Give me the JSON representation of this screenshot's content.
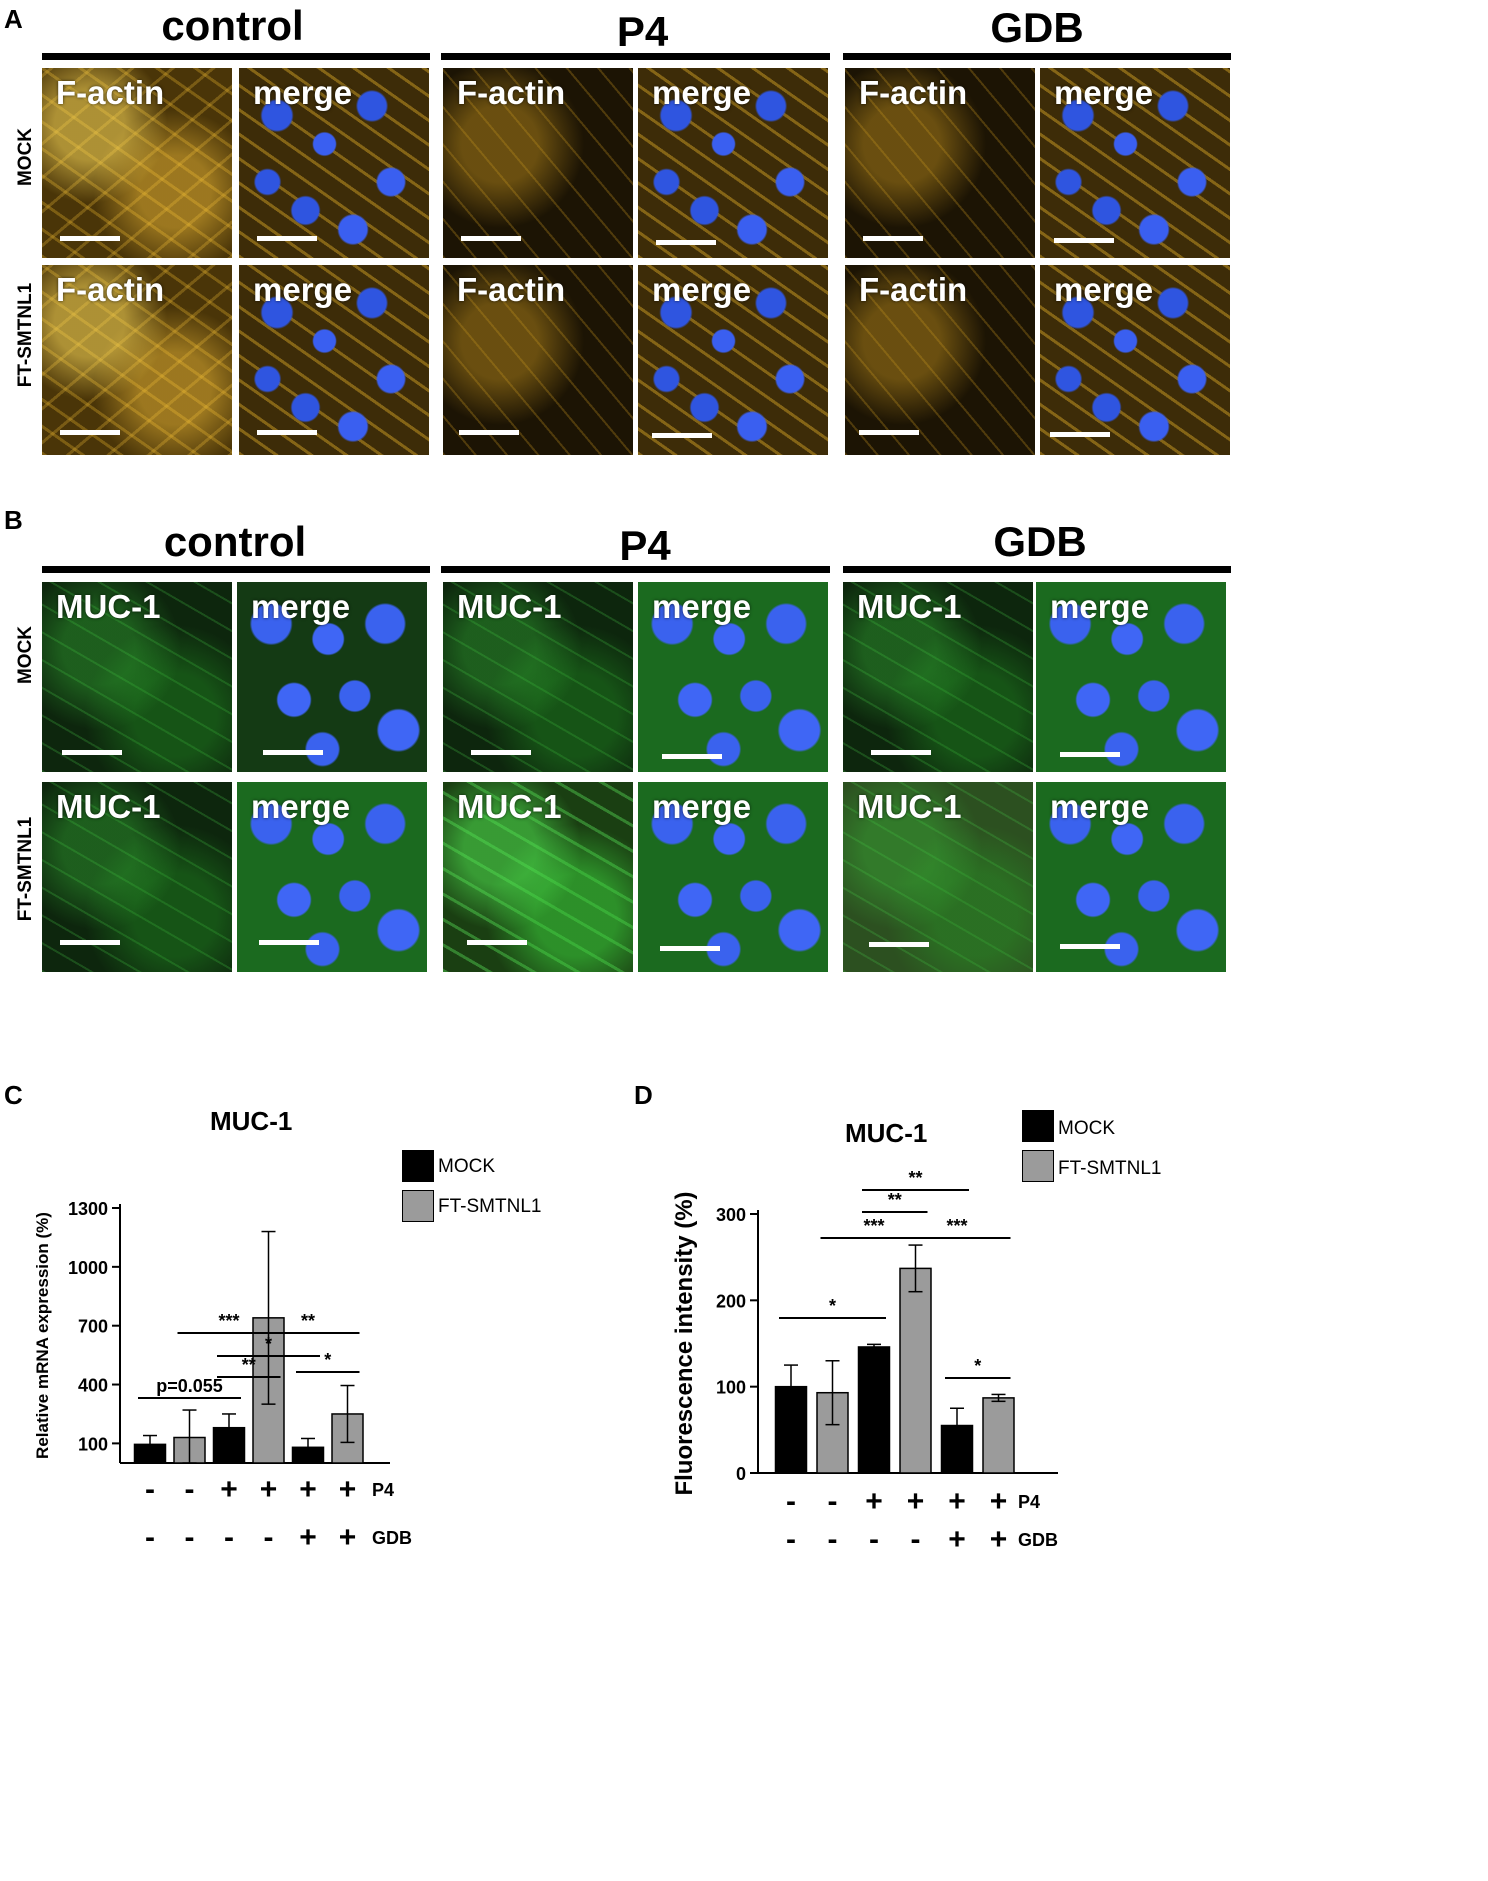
{
  "figure": {
    "panel_a": {
      "letter": "A",
      "groups": [
        {
          "title": "control",
          "tiles": [
            [
              "F-actin",
              "merge"
            ],
            [
              "F-actin",
              "merge"
            ]
          ]
        },
        {
          "title": "P4",
          "tiles": [
            [
              "F-actin",
              "merge"
            ],
            [
              "F-actin",
              "merge"
            ]
          ]
        },
        {
          "title": "GDB",
          "tiles": [
            [
              "F-actin",
              "merge"
            ],
            [
              "F-actin",
              "merge"
            ]
          ]
        }
      ],
      "row_labels": [
        "MOCK",
        "FT-SMTNL1"
      ]
    },
    "panel_b": {
      "letter": "B",
      "groups": [
        {
          "title": "control",
          "tiles": [
            [
              "MUC-1",
              "merge"
            ],
            [
              "MUC-1",
              "merge"
            ]
          ]
        },
        {
          "title": "P4",
          "tiles": [
            [
              "MUC-1",
              "merge"
            ],
            [
              "MUC-1",
              "merge"
            ]
          ]
        },
        {
          "title": "GDB",
          "tiles": [
            [
              "MUC-1",
              "merge"
            ],
            [
              "MUC-1",
              "merge"
            ]
          ]
        }
      ],
      "row_labels": [
        "MOCK",
        "FT-SMTNL1"
      ]
    }
  },
  "chart_data": [
    {
      "panel": "C",
      "type": "bar",
      "title": "MUC-1",
      "ylabel": "Relative mRNA expression (%)",
      "ylim": [
        0,
        1300
      ],
      "yticks": [
        100,
        400,
        700,
        1000,
        1300
      ],
      "series": [
        {
          "name": "MOCK",
          "color": "#000000"
        },
        {
          "name": "FT-SMTNL1",
          "color": "#9b9b9b"
        }
      ],
      "bars": [
        {
          "series": "MOCK",
          "value": 95,
          "err": 45
        },
        {
          "series": "FT-SMTNL1",
          "value": 130,
          "err": 140
        },
        {
          "series": "MOCK",
          "value": 180,
          "err": 70
        },
        {
          "series": "FT-SMTNL1",
          "value": 740,
          "err": 440
        },
        {
          "series": "MOCK",
          "value": 80,
          "err": 45
        },
        {
          "series": "FT-SMTNL1",
          "value": 250,
          "err": 145
        }
      ],
      "conditions": [
        {
          "name": "P4",
          "values": [
            "-",
            "-",
            "+",
            "+",
            "+",
            "+"
          ]
        },
        {
          "name": "GDB",
          "values": [
            "-",
            "-",
            "-",
            "-",
            "+",
            "+"
          ]
        }
      ],
      "annotations": [
        {
          "label": "p=0.055",
          "from_bar": 0,
          "to_bar": 2
        },
        {
          "label": "**",
          "from_bar": 2,
          "to_bar": 3
        },
        {
          "label": "*",
          "from_bar": 2,
          "to_bar": 4
        },
        {
          "label": "***",
          "from_bar": 1,
          "to_bar": 3
        },
        {
          "label": "**",
          "from_bar": 3,
          "to_bar": 5
        },
        {
          "label": "*",
          "from_bar": 4,
          "to_bar": 5
        }
      ],
      "legend": [
        {
          "label": "MOCK"
        },
        {
          "label": "FT-SMTNL1"
        }
      ]
    },
    {
      "panel": "D",
      "type": "bar",
      "title": "MUC-1",
      "ylabel": "Fluorescence intensity (%)",
      "ylim": [
        0,
        300
      ],
      "yticks": [
        0,
        100,
        200,
        300
      ],
      "series": [
        {
          "name": "MOCK",
          "color": "#000000"
        },
        {
          "name": "FT-SMTNL1",
          "color": "#9b9b9b"
        }
      ],
      "bars": [
        {
          "series": "MOCK",
          "value": 100,
          "err": 25
        },
        {
          "series": "FT-SMTNL1",
          "value": 93,
          "err": 37
        },
        {
          "series": "MOCK",
          "value": 146,
          "err": 3
        },
        {
          "series": "FT-SMTNL1",
          "value": 237,
          "err": 27
        },
        {
          "series": "MOCK",
          "value": 55,
          "err": 20
        },
        {
          "series": "FT-SMTNL1",
          "value": 87,
          "err": 4
        }
      ],
      "conditions": [
        {
          "name": "P4",
          "values": [
            "-",
            "-",
            "+",
            "+",
            "+",
            "+"
          ]
        },
        {
          "name": "GDB",
          "values": [
            "-",
            "-",
            "-",
            "-",
            "+",
            "+"
          ]
        }
      ],
      "annotations": [
        {
          "label": "*",
          "from_bar": 0,
          "to_bar": 2
        },
        {
          "label": "***",
          "from_bar": 1,
          "to_bar": 3
        },
        {
          "label": "**",
          "from_bar": 2,
          "to_bar": 3
        },
        {
          "label": "**",
          "from_bar": 2,
          "to_bar": 4
        },
        {
          "label": "***",
          "from_bar": 3,
          "to_bar": 5
        },
        {
          "label": "*",
          "from_bar": 4,
          "to_bar": 5
        }
      ],
      "legend": [
        {
          "label": "MOCK"
        },
        {
          "label": "FT-SMTNL1"
        }
      ]
    }
  ]
}
